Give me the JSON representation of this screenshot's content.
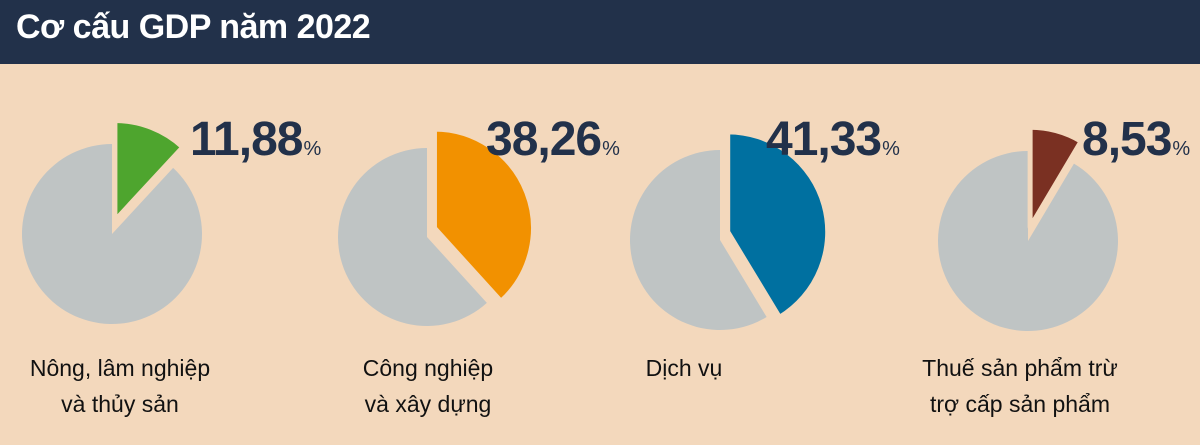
{
  "header": {
    "title": "Cơ cấu GDP năm 2022"
  },
  "colors": {
    "header_bg": "#22314a",
    "background": "#f3d8bc",
    "pie_rest": "#bfc4c4"
  },
  "chart_data": [
    {
      "type": "pie",
      "value": 11.88,
      "value_text": "11,88",
      "unit": "%",
      "label_lines": [
        "Nông, lâm nghiệp",
        "và thủy sản"
      ],
      "color": "#4ea52e"
    },
    {
      "type": "pie",
      "value": 38.26,
      "value_text": "38,26",
      "unit": "%",
      "label_lines": [
        "Công nghiệp",
        "và xây dựng"
      ],
      "color": "#f29100"
    },
    {
      "type": "pie",
      "value": 41.33,
      "value_text": "41,33",
      "unit": "%",
      "label_lines": [
        "Dịch vụ"
      ],
      "color": "#0070a0"
    },
    {
      "type": "pie",
      "value": 8.53,
      "value_text": "8,53",
      "unit": "%",
      "label_lines": [
        "Thuế sản phẩm trừ",
        "trợ cấp sản phẩm"
      ],
      "color": "#7a3022"
    }
  ]
}
